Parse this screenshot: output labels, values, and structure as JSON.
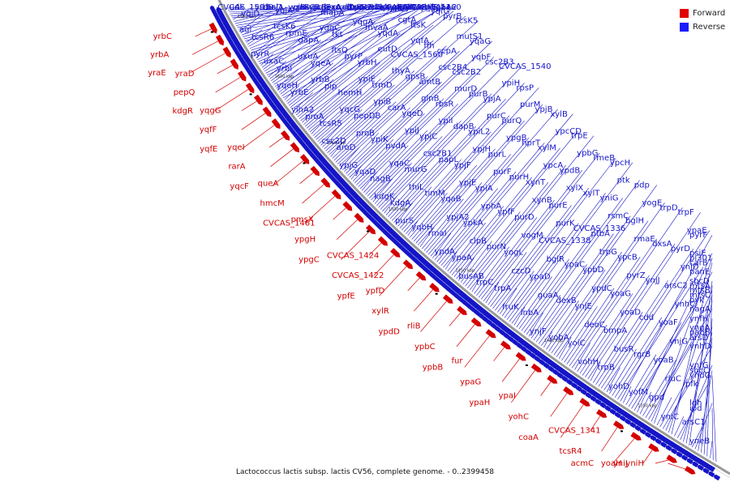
{
  "caption": "Lactococcus lactis subsp. lactis CV56, complete genome. - 0..2399458",
  "legend": [
    {
      "label": "Forward",
      "color": "#e00000"
    },
    {
      "label": "Reverse",
      "color": "#1a1aff"
    }
  ],
  "colors": {
    "forward": "#d40000",
    "reverse": "#1515c8",
    "arc": "#9a9a9a"
  },
  "ticks": [
    "1650 kbp",
    "1600 kbp",
    "1550 kbp",
    "1500 kbp",
    "1450 kbp",
    "1400 kbp",
    "1350 kbp"
  ],
  "genes_reverse": [
    "CVCAS_1591",
    "yrbD",
    "yraF",
    "yqjE",
    "trxB2",
    "rbsK",
    "udk",
    "holA",
    "yqjB",
    "trxA",
    "rbsA",
    "yqgF",
    "yqjD",
    "rbsD",
    "uxuB",
    "dexA",
    "mta",
    "amyY",
    "agl",
    "yqjA",
    "rbsC",
    "uxuT",
    "asd",
    "yqgE",
    "tcsR6",
    "tcsK6",
    "yrcB",
    "rbsB",
    "azlD",
    "azlC",
    "pyrR",
    "rpmE",
    "mapA",
    "rliA",
    "arb",
    "yqiA",
    "uxaC",
    "dapA",
    "ygqC",
    "yqeB",
    "CVCAS_1498",
    "CVCAS_1460",
    "yrbI",
    "uxuA",
    "tkt",
    "yqgA",
    "yqhA",
    "yqfB",
    "yqeH",
    "yqeA",
    "ftsQ",
    "mvaA",
    "CVCAS_1451",
    "ubiE",
    "yrbE",
    "yrbB",
    "pyrP",
    "yqdA",
    "cgtA",
    "yqbA2",
    "yihA2",
    "pip",
    "yrbH",
    "eutD",
    "ftsK",
    "yqfG",
    "proA",
    "hemH",
    "ypiE",
    "CVCAS_1560",
    "yqfA",
    "pyrB",
    "tcsR5",
    "yqcG",
    "trmD",
    "thyA",
    "ffh",
    "tcsK5",
    "csc2D",
    "pepDB",
    "ypiB",
    "gpsB",
    "ccpA",
    "mutS1",
    "aroD",
    "proB",
    "carA",
    "amtB",
    "csc2B4",
    "yqaG",
    "ypjG",
    "ypiK",
    "yqeD",
    "glnB",
    "csc2B2",
    "yqbF",
    "yqaD",
    "pvdA",
    "ypiJ",
    "rbsR",
    "murD",
    "csc2B3",
    "nagB",
    "yqaC",
    "ypjC",
    "ypiI",
    "purB",
    "CVCAS_1540",
    "kdgK",
    "murG",
    "csc2B1",
    "dapB",
    "ypjA",
    "ypiH",
    "kdgA",
    "thiL",
    "papL",
    "ypiL2",
    "purC",
    "rpsP",
    "purS",
    "timM",
    "ypjF",
    "ypjH",
    "purQ",
    "purM",
    "yqbH",
    "yqaB",
    "ypjE",
    "purL",
    "ypgB",
    "ypjB",
    "rmaI",
    "ypjA2",
    "ypiA",
    "purF",
    "hprT",
    "xylB",
    "ypdA",
    "ypkA",
    "yphA",
    "purH",
    "xylM",
    "ypcCD",
    "ypaA",
    "clpB",
    "ypfF",
    "xynT",
    "ypcA",
    "trpE",
    "busAB",
    "purN",
    "purD",
    "xynB",
    "ypdB",
    "ypbG",
    "trpC",
    "yogL",
    "vogM",
    "purE",
    "xylX",
    "rmeB",
    "trpA",
    "czcD",
    "CVCAS_1338",
    "purK",
    "xylT",
    "ypcH",
    "fruK",
    "ypaD",
    "bglR",
    "CVCAS_1336",
    "yniG",
    "ptk",
    "lnbA",
    "guaA",
    "ypaC",
    "ptbA",
    "rsmC",
    "pdp",
    "ynjF",
    "dexB",
    "ypbD",
    "trpG",
    "bglH",
    "yogE",
    "yobA",
    "ynjE",
    "ypdC",
    "ypcB",
    "rmaE",
    "trpD",
    "yoiC",
    "deoC",
    "yoaG",
    "pyrZ",
    "dxsA",
    "trpF",
    "vohH",
    "bmpA",
    "yoaD",
    "ynjJ",
    "pyrD",
    "ypaE",
    "trpB",
    "busR",
    "cdd",
    "arsC2",
    "ynjD",
    "pyrF",
    "yohD",
    "rgrB",
    "yoaF",
    "ynhC",
    "panE",
    "psiE",
    "yofM",
    "yoaB",
    "ynjG",
    "nagA",
    "mtsB",
    "pi301",
    "gpd",
    "rluC",
    "ynhD",
    "yngA",
    "mtsC",
    "carB",
    "yniC",
    "pfk",
    "ynfG",
    "pabB",
    "pyk",
    "sbcD",
    "arsC1",
    "ldh",
    "sbcC",
    "arsD",
    "ynfH",
    "mtsA",
    "yneB",
    "ipd",
    "yndG"
  ],
  "genes_forward": [
    "yrbC",
    "yrbA",
    "yraE",
    "yraD",
    "pepQ",
    "kdgR",
    "yqgG",
    "yqfF",
    "yqfE",
    "yqeI",
    "rarA",
    "yqcF",
    "queA",
    "hmcM",
    "CVCAS_1461",
    "pmsX",
    "ypgH",
    "ypgC",
    "CVCAS_1424",
    "CVCAS_1422",
    "ypfE",
    "ypfD",
    "xylR",
    "ypdD",
    "rliB",
    "ypbC",
    "ypbB",
    "fur",
    "ypaG",
    "ypaH",
    "ypaI",
    "yohC",
    "coaA",
    "CVCAS_1341",
    "tcsR4",
    "acmC",
    "yoaH",
    "yniJ",
    "yniH"
  ]
}
